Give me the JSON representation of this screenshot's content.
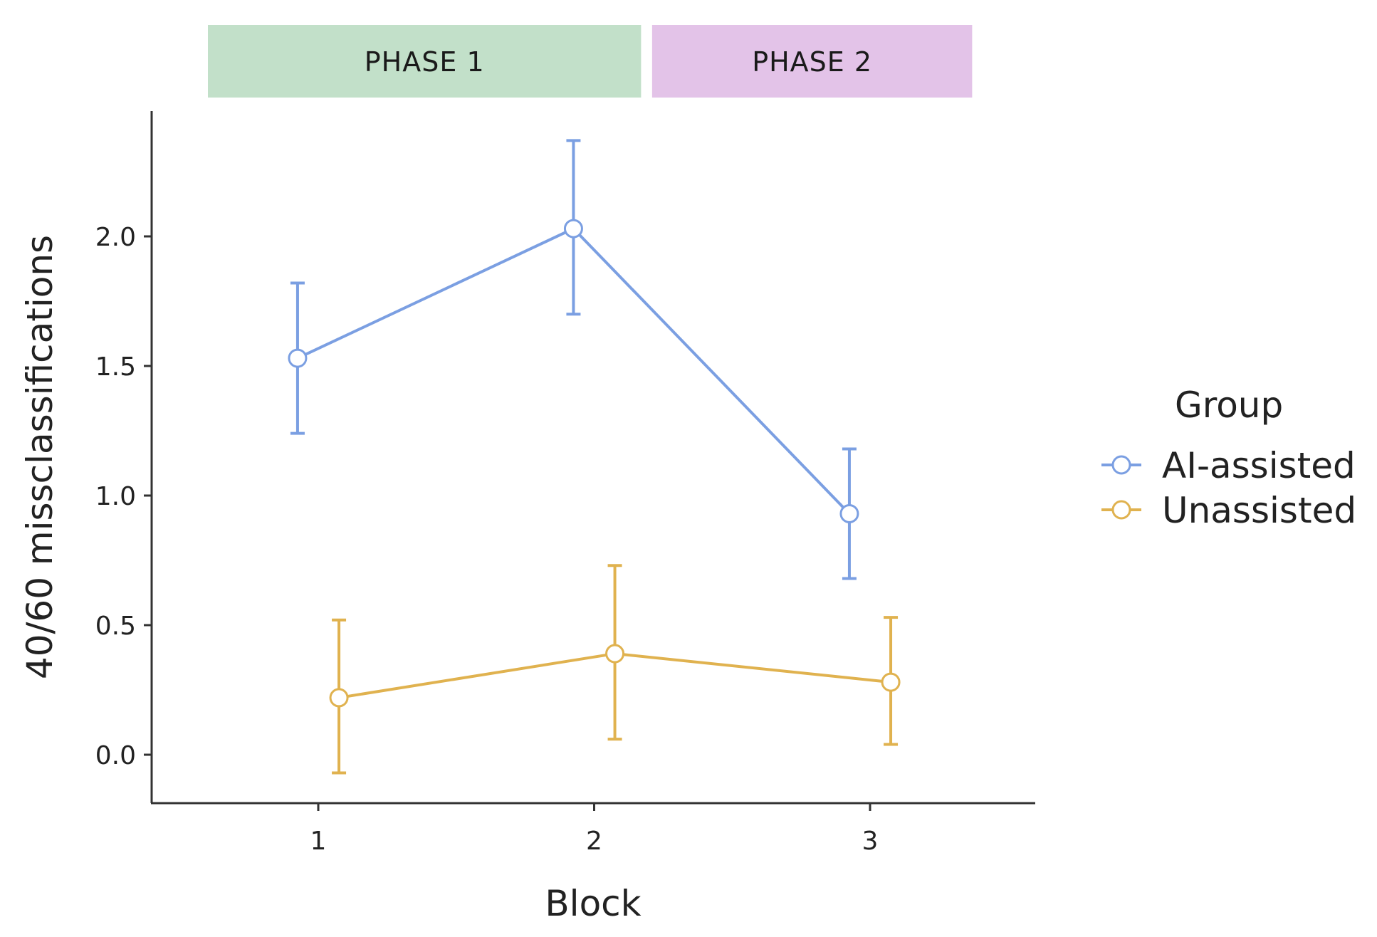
{
  "chart_data": {
    "type": "line",
    "xlabel": "Block",
    "ylabel": "40/60 missclassifications",
    "categories": [
      "1",
      "2",
      "3"
    ],
    "ylim": [
      -0.19,
      2.48
    ],
    "yticks": [
      "0.0",
      "0.5",
      "1.0",
      "1.5",
      "2.0"
    ],
    "grid": false,
    "legend": {
      "title": "Group",
      "placement": "right"
    },
    "phases": [
      {
        "label": "PHASE 1",
        "color": "#c2e0c9",
        "x_start": 0.6,
        "x_end": 2.17
      },
      {
        "label": "PHASE 2",
        "color": "#e3c3e8",
        "x_start": 2.21,
        "x_end": 3.37
      }
    ],
    "series": [
      {
        "name": "AI-assisted",
        "color": "#7b9fe2",
        "dodge": -0.075,
        "values": [
          1.53,
          2.03,
          0.93
        ],
        "error_low": [
          1.24,
          1.7,
          0.68
        ],
        "error_high": [
          1.82,
          2.37,
          1.18
        ]
      },
      {
        "name": "Unassisted",
        "color": "#e0b24f",
        "dodge": 0.075,
        "values": [
          0.22,
          0.39,
          0.28
        ],
        "error_low": [
          -0.07,
          0.06,
          0.04
        ],
        "error_high": [
          0.52,
          0.73,
          0.53
        ]
      }
    ]
  }
}
